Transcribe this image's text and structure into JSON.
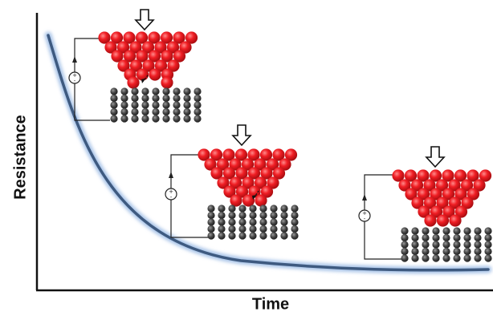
{
  "labels": {
    "ylabel": "Resistance",
    "xlabel": "Time"
  },
  "icons": {
    "press": "down-arrow-icon",
    "source": "voltage-source-icon"
  },
  "colors": {
    "tip_atom": "#e8141a",
    "substrate_atom": "#3c3c3c",
    "curve": "#3e5a80",
    "curve_glow": "#a9c4e8",
    "axis": "#111111"
  },
  "stages": [
    {
      "name": "stage-1",
      "contact": "two-atom bridge"
    },
    {
      "name": "stage-2",
      "contact": "three-atom contact"
    },
    {
      "name": "stage-3",
      "contact": "full contact"
    }
  ]
}
